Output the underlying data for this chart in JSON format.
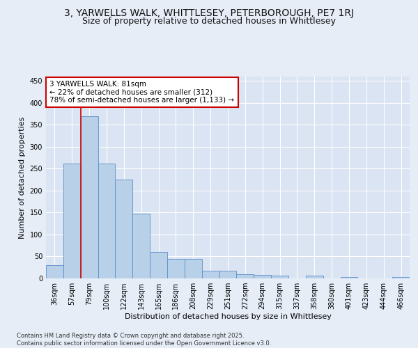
{
  "title": "3, YARWELLS WALK, WHITTLESEY, PETERBOROUGH, PE7 1RJ",
  "subtitle": "Size of property relative to detached houses in Whittlesey",
  "xlabel": "Distribution of detached houses by size in Whittlesey",
  "ylabel": "Number of detached properties",
  "categories": [
    "36sqm",
    "57sqm",
    "79sqm",
    "100sqm",
    "122sqm",
    "143sqm",
    "165sqm",
    "186sqm",
    "208sqm",
    "229sqm",
    "251sqm",
    "272sqm",
    "294sqm",
    "315sqm",
    "337sqm",
    "358sqm",
    "380sqm",
    "401sqm",
    "423sqm",
    "444sqm",
    "466sqm"
  ],
  "values": [
    30,
    262,
    370,
    262,
    226,
    148,
    60,
    45,
    45,
    18,
    18,
    10,
    8,
    6,
    0,
    6,
    0,
    3,
    0,
    0,
    3
  ],
  "bar_color": "#b8d0e8",
  "bar_edge_color": "#5b8fc9",
  "red_line_index": 2,
  "annotation_text": "3 YARWELLS WALK: 81sqm\n← 22% of detached houses are smaller (312)\n78% of semi-detached houses are larger (1,133) →",
  "annotation_box_color": "#ffffff",
  "annotation_box_edge": "#cc0000",
  "red_line_color": "#cc0000",
  "background_color": "#e6edf7",
  "plot_bg_color": "#dae4f2",
  "grid_color": "#ffffff",
  "ylim": [
    0,
    460
  ],
  "yticks": [
    0,
    50,
    100,
    150,
    200,
    250,
    300,
    350,
    400,
    450
  ],
  "footer_text": "Contains HM Land Registry data © Crown copyright and database right 2025.\nContains public sector information licensed under the Open Government Licence v3.0.",
  "title_fontsize": 10,
  "subtitle_fontsize": 9,
  "axis_label_fontsize": 8,
  "tick_fontsize": 7,
  "annotation_fontsize": 7.5,
  "footer_fontsize": 6
}
